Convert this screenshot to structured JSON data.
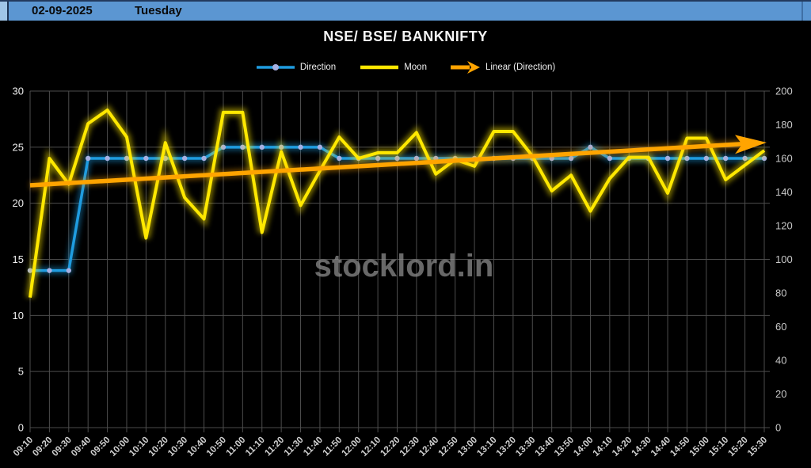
{
  "header": {
    "date": "02-09-2025",
    "day": "Tuesday",
    "bar_color": "#5b96d2"
  },
  "title": "NSE/ BSE/ BANKNIFTY",
  "watermark": "stocklord.in",
  "chart_data": {
    "type": "line",
    "title": "NSE/ BSE/ BANKNIFTY",
    "grid": true,
    "legend_position": "top",
    "colors": {
      "direction_line": "#1f9ce0",
      "direction_marker": "#a6b0e2",
      "moon_line": "#ffe800",
      "trend_line": "#ffa400",
      "gridline": "#4d4d4d",
      "left_axis_labels": "#f0f0f0",
      "right_axis_labels": "#c8c8c8",
      "x_axis_labels": "#d0d0d0",
      "watermark": "#909090",
      "background": "#000000"
    },
    "axes": {
      "left": {
        "min": 0,
        "max": 30,
        "step": 5
      },
      "right": {
        "min": 0,
        "max": 200,
        "step": 20
      }
    },
    "categories": [
      "09:10",
      "09:20",
      "09:30",
      "09:40",
      "09:50",
      "10:00",
      "10:10",
      "10:20",
      "10:30",
      "10:40",
      "10:50",
      "11:00",
      "11:10",
      "11:20",
      "11:30",
      "11:40",
      "11:50",
      "12:00",
      "12:10",
      "12:20",
      "12:30",
      "12:40",
      "12:50",
      "13:00",
      "13:10",
      "13:20",
      "13:30",
      "13:40",
      "13:50",
      "14:00",
      "14:10",
      "14:20",
      "14:30",
      "14:40",
      "14:50",
      "15:00",
      "15:10",
      "15:20",
      "15:30"
    ],
    "series": [
      {
        "name": "Direction",
        "type": "line-markers",
        "axis": "left",
        "values": [
          14,
          14,
          14,
          24,
          24,
          24,
          24,
          24,
          24,
          24,
          25,
          25,
          25,
          25,
          25,
          25,
          24,
          24,
          24,
          24,
          24,
          24,
          24,
          24,
          24,
          24,
          24,
          24,
          24,
          25,
          24,
          24,
          24,
          24,
          24,
          24,
          24,
          24,
          24
        ]
      },
      {
        "name": "Moon",
        "type": "line",
        "axis": "left",
        "values": [
          11.6,
          24,
          21.7,
          27.1,
          28.3,
          25.9,
          16.9,
          25.4,
          20.5,
          18.6,
          28.1,
          28.1,
          17.4,
          24.6,
          19.8,
          22.9,
          25.9,
          24,
          24.5,
          24.5,
          26.3,
          22.6,
          23.9,
          23.3,
          26.4,
          26.4,
          24.2,
          21.1,
          22.5,
          19.3,
          22.2,
          24.1,
          24.1,
          20.9,
          25.8,
          25.8,
          22.1,
          23.4,
          24.7
        ]
      },
      {
        "name": "Linear (Direction)",
        "type": "trend",
        "axis": "left",
        "start": 21.6,
        "end": 25.4
      }
    ]
  }
}
